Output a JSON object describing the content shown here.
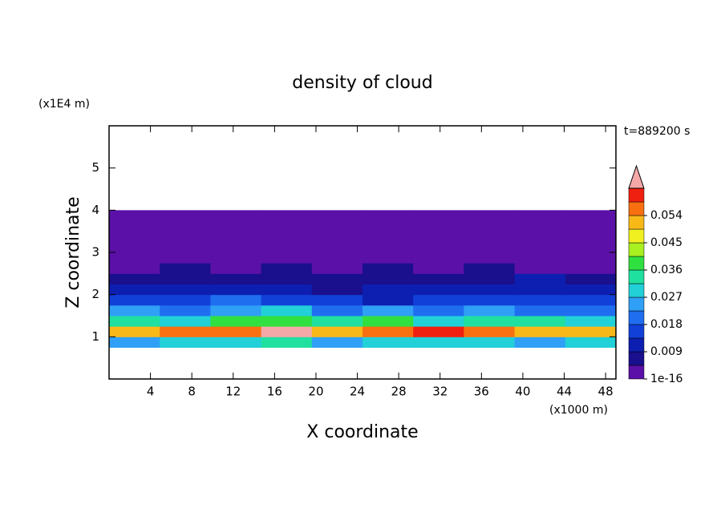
{
  "chart_data": {
    "type": "contour",
    "title": "density of cloud",
    "x_label": "X coordinate",
    "y_label": "Z coordinate",
    "x_unit": "(x1000 m)",
    "y_unit": "(x1E4 m)",
    "time_label": "t=889200 s",
    "xlim": [
      0,
      49
    ],
    "ylim": [
      0,
      6
    ],
    "xticks": [
      4,
      8,
      12,
      16,
      20,
      24,
      28,
      32,
      36,
      40,
      44,
      48
    ],
    "yticks": [
      1,
      2,
      3,
      4,
      5
    ],
    "x_edges": [
      0,
      4.9,
      9.8,
      14.7,
      19.6,
      24.5,
      29.4,
      34.3,
      39.2,
      44.1,
      49
    ],
    "z_edges": [
      0.75,
      1.0,
      1.25,
      1.5,
      1.75,
      2.0,
      2.25,
      2.5,
      2.75,
      3.0,
      3.25,
      3.5,
      3.75,
      4.0
    ],
    "values": [
      [
        0.024,
        0.03,
        0.028,
        0.033,
        0.026,
        0.03,
        0.027,
        0.031,
        0.025,
        0.029
      ],
      [
        0.05,
        0.055,
        0.058,
        0.065,
        0.052,
        0.056,
        0.059,
        0.054,
        0.05,
        0.053
      ],
      [
        0.034,
        0.03,
        0.038,
        0.04,
        0.032,
        0.036,
        0.031,
        0.033,
        0.035,
        0.03
      ],
      [
        0.024,
        0.02,
        0.026,
        0.028,
        0.022,
        0.023,
        0.021,
        0.025,
        0.02,
        0.022
      ],
      [
        0.016,
        0.014,
        0.018,
        0.017,
        0.015,
        0.013,
        0.016,
        0.014,
        0.015,
        0.017
      ],
      [
        0.011,
        0.009,
        0.01,
        0.012,
        0.008,
        0.01,
        0.009,
        0.011,
        0.012,
        0.01
      ],
      [
        0.006,
        0.005,
        0.007,
        0.006,
        0.005,
        0.006,
        0.007,
        0.008,
        0.009,
        0.006
      ],
      [
        0.004,
        0.005,
        0.003,
        0.005,
        0.004,
        0.006,
        0.004,
        0.005,
        0.004,
        0.003
      ],
      [
        0.003,
        0.004,
        0.003,
        0.003,
        0.002,
        0.003,
        0.004,
        0.003,
        0.003,
        0.002
      ],
      [
        0.002,
        0.002,
        0.003,
        0.002,
        0.002,
        0.002,
        0.002,
        0.003,
        0.002,
        0.002
      ],
      [
        0.0015,
        0.002,
        0.0015,
        0.001,
        0.0015,
        0.002,
        0.0015,
        0.001,
        0.0015,
        0.002
      ],
      [
        0.001,
        0.001,
        0.001,
        0.001,
        0.001,
        0.001,
        0.001,
        0.001,
        0.001,
        0.001
      ],
      [
        0.001,
        0.001,
        0.001,
        0.001,
        0.001,
        0.001,
        0.001,
        0.001,
        0.001,
        0.001
      ]
    ],
    "levels": [
      1e-16,
      0.0045,
      0.009,
      0.0135,
      0.018,
      0.0225,
      0.027,
      0.0315,
      0.036,
      0.0405,
      0.045,
      0.0495,
      0.054,
      0.0585,
      0.063
    ],
    "level_colors": [
      "#5b10a8",
      "#1a0f8c",
      "#0d1fb0",
      "#1040d8",
      "#1f6ef0",
      "#2fa0f5",
      "#22d0d8",
      "#20e0a0",
      "#30e040",
      "#a8f020",
      "#f0f020",
      "#f8b818",
      "#f87010",
      "#f02010"
    ],
    "extend_color": "#f4a8a8",
    "colorbar_ticks": [
      1e-16,
      0.009,
      0.018,
      0.027,
      0.036,
      0.045,
      0.054
    ]
  }
}
